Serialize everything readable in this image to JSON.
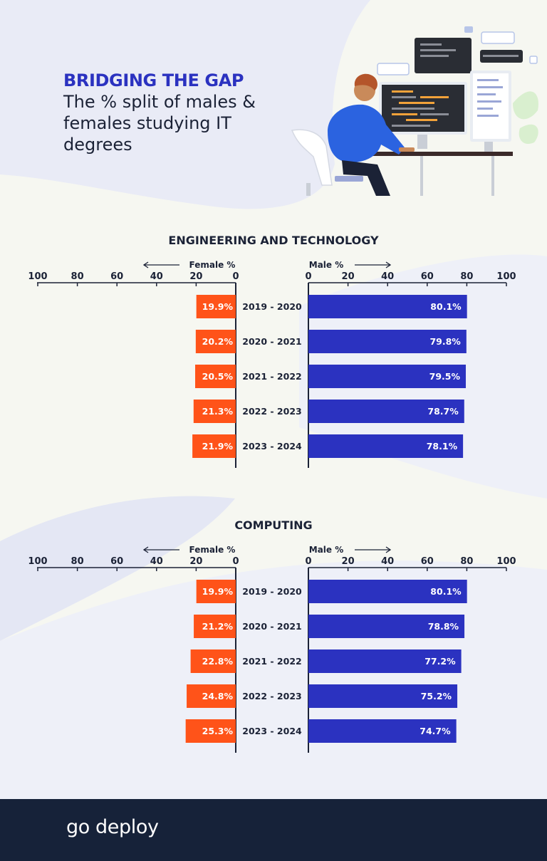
{
  "header": {
    "title": "BRIDGING THE GAP",
    "subtitle": "The % split of males & females studying IT degrees"
  },
  "colors": {
    "female": "#ff5319",
    "male": "#2b32c0",
    "text": "#1b2236",
    "footer": "#162239"
  },
  "footer": {
    "brand": "go deploy"
  },
  "chart_data": [
    {
      "type": "bar",
      "title": "ENGINEERING AND TECHNOLOGY",
      "categories": [
        "2019 - 2020",
        "2020 - 2021",
        "2021 - 2022",
        "2022 - 2023",
        "2023 - 2024"
      ],
      "female_label": "Female %",
      "male_label": "Male %",
      "female": [
        19.9,
        20.2,
        20.5,
        21.3,
        21.9
      ],
      "male": [
        80.1,
        79.8,
        79.5,
        78.7,
        78.1
      ],
      "female_text": [
        "19.9%",
        "20.2%",
        "20.5%",
        "21.3%",
        "21.9%"
      ],
      "male_text": [
        "80.1%",
        "79.8%",
        "79.5%",
        "78.7%",
        "78.1%"
      ],
      "ticks": [
        "0",
        "20",
        "40",
        "60",
        "80",
        "100"
      ],
      "xlim": [
        0,
        100
      ]
    },
    {
      "type": "bar",
      "title": "COMPUTING",
      "categories": [
        "2019 - 2020",
        "2020 - 2021",
        "2021 - 2022",
        "2022 - 2023",
        "2023 - 2024"
      ],
      "female_label": "Female %",
      "male_label": "Male %",
      "female": [
        19.9,
        21.2,
        22.8,
        24.8,
        25.3
      ],
      "male": [
        80.1,
        78.8,
        77.2,
        75.2,
        74.7
      ],
      "female_text": [
        "19.9%",
        "21.2%",
        "22.8%",
        "24.8%",
        "25.3%"
      ],
      "male_text": [
        "80.1%",
        "78.8%",
        "77.2%",
        "75.2%",
        "74.7%"
      ],
      "ticks": [
        "0",
        "20",
        "40",
        "60",
        "80",
        "100"
      ],
      "xlim": [
        0,
        100
      ]
    }
  ]
}
